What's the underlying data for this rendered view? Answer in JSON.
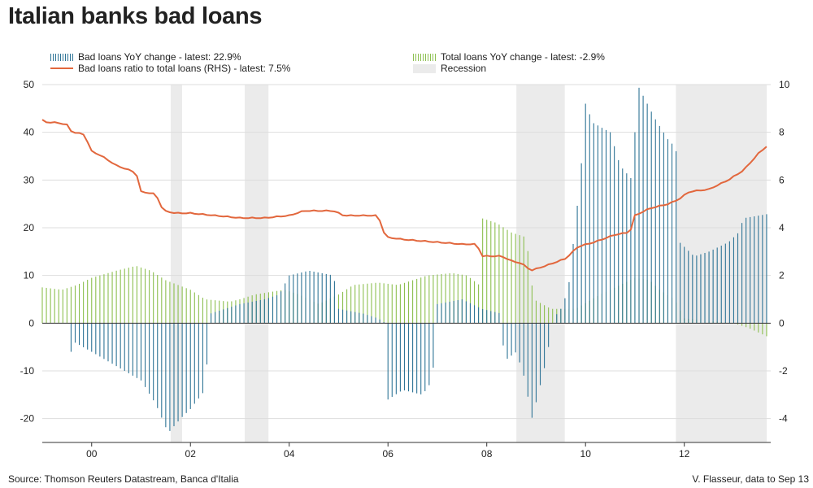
{
  "chart_data": {
    "type": "bar",
    "title": "Italian banks bad loans",
    "legend": [
      {
        "key": "bad_yoy",
        "label": "Bad loans YoY change - latest: 22.9%",
        "color": "#2e7496",
        "kind": "bars"
      },
      {
        "key": "ratio",
        "label": "Bad loans ratio to total loans (RHS) - latest: 7.5%",
        "color": "#e2673d",
        "kind": "line"
      },
      {
        "key": "total_yoy",
        "label": "Total loans YoY change - latest: -2.9%",
        "color": "#8cbf4f",
        "kind": "bars"
      },
      {
        "key": "recession",
        "label": "Recession",
        "color": "#ebebeb",
        "kind": "band"
      }
    ],
    "x_range": [
      1999.0,
      2013.75
    ],
    "x_ticks": [
      {
        "value": 2000,
        "label": "00"
      },
      {
        "value": 2002,
        "label": "02"
      },
      {
        "value": 2004,
        "label": "04"
      },
      {
        "value": 2006,
        "label": "06"
      },
      {
        "value": 2008,
        "label": "08"
      },
      {
        "value": 2010,
        "label": "10"
      },
      {
        "value": 2012,
        "label": "12"
      }
    ],
    "y_left": {
      "range": [
        -25,
        50
      ],
      "ticks": [
        50,
        40,
        30,
        20,
        10,
        0,
        -10,
        -20
      ]
    },
    "y_right": {
      "range": [
        -5,
        10
      ],
      "ticks": [
        10,
        8,
        6,
        4,
        2,
        0,
        -2,
        -4
      ]
    },
    "recessions": [
      [
        2001.6,
        2001.83
      ],
      [
        2003.1,
        2003.58
      ],
      [
        2008.6,
        2009.58
      ],
      [
        2011.83,
        2013.67
      ]
    ],
    "bad_loans_yoy": {
      "knots": [
        [
          1999.0,
          0
        ],
        [
          1999.5,
          0
        ],
        [
          1999.55,
          -7
        ],
        [
          1999.65,
          -4
        ],
        [
          2000.0,
          -6
        ],
        [
          2000.5,
          -9
        ],
        [
          2001.0,
          -12
        ],
        [
          2001.3,
          -17
        ],
        [
          2001.55,
          -23
        ],
        [
          2001.8,
          -20
        ],
        [
          2002.0,
          -18
        ],
        [
          2002.3,
          -14
        ],
        [
          2002.4,
          2
        ],
        [
          2002.7,
          3
        ],
        [
          2003.0,
          4
        ],
        [
          2003.5,
          5
        ],
        [
          2003.8,
          6
        ],
        [
          2004.0,
          10
        ],
        [
          2004.4,
          11
        ],
        [
          2004.9,
          10
        ],
        [
          2005.0,
          3
        ],
        [
          2005.5,
          2
        ],
        [
          2005.8,
          1
        ],
        [
          2005.95,
          0
        ],
        [
          2006.0,
          -16
        ],
        [
          2006.3,
          -14
        ],
        [
          2006.7,
          -15
        ],
        [
          2006.9,
          -12
        ],
        [
          2007.0,
          4
        ],
        [
          2007.5,
          5
        ],
        [
          2007.9,
          3
        ],
        [
          2008.3,
          2
        ],
        [
          2008.35,
          -8
        ],
        [
          2008.6,
          -6
        ],
        [
          2008.75,
          -11
        ],
        [
          2008.92,
          -20
        ],
        [
          2009.2,
          -8
        ],
        [
          2009.35,
          1
        ],
        [
          2009.5,
          3
        ],
        [
          2009.65,
          7
        ],
        [
          2009.9,
          31
        ],
        [
          2010.0,
          46
        ],
        [
          2010.15,
          42
        ],
        [
          2010.5,
          40
        ],
        [
          2010.7,
          33
        ],
        [
          2010.95,
          30
        ],
        [
          2011.05,
          50
        ],
        [
          2011.4,
          43
        ],
        [
          2011.7,
          38
        ],
        [
          2011.83,
          37
        ],
        [
          2011.9,
          17
        ],
        [
          2012.2,
          14
        ],
        [
          2012.5,
          15
        ],
        [
          2012.9,
          17
        ],
        [
          2013.1,
          19
        ],
        [
          2013.2,
          22
        ],
        [
          2013.7,
          22.9
        ]
      ],
      "step_months": 1,
      "latest": 22.9
    },
    "total_loans_yoy": {
      "knots": [
        [
          1999.0,
          7.5
        ],
        [
          1999.4,
          7
        ],
        [
          1999.7,
          8
        ],
        [
          2000.0,
          9.5
        ],
        [
          2000.5,
          11
        ],
        [
          2000.9,
          12
        ],
        [
          2001.2,
          11
        ],
        [
          2001.5,
          9
        ],
        [
          2002.0,
          7
        ],
        [
          2002.3,
          5
        ],
        [
          2002.8,
          4.5
        ],
        [
          2003.0,
          5
        ],
        [
          2003.3,
          6
        ],
        [
          2003.9,
          7
        ],
        [
          2004.2,
          6
        ],
        [
          2004.6,
          4
        ],
        [
          2005.0,
          6
        ],
        [
          2005.3,
          8
        ],
        [
          2005.8,
          8.5
        ],
        [
          2006.2,
          8
        ],
        [
          2006.8,
          10
        ],
        [
          2007.3,
          10.5
        ],
        [
          2007.6,
          10
        ],
        [
          2007.85,
          8
        ],
        [
          2007.9,
          22
        ],
        [
          2008.2,
          21
        ],
        [
          2008.5,
          19
        ],
        [
          2008.8,
          18
        ],
        [
          2008.95,
          5
        ],
        [
          2009.3,
          3
        ],
        [
          2009.8,
          3
        ],
        [
          2010.3,
          6
        ],
        [
          2010.7,
          8
        ],
        [
          2011.0,
          9.5
        ],
        [
          2011.3,
          9
        ],
        [
          2011.5,
          7
        ],
        [
          2011.8,
          5
        ],
        [
          2012.0,
          1
        ],
        [
          2012.5,
          0.5
        ],
        [
          2013.0,
          0
        ],
        [
          2013.3,
          -1
        ],
        [
          2013.7,
          -2.9
        ]
      ],
      "step_months": 1,
      "latest": -2.9
    },
    "bad_loans_ratio": {
      "axis": "right",
      "knots": [
        [
          1999.0,
          8.5
        ],
        [
          1999.1,
          8.4
        ],
        [
          1999.3,
          8.4
        ],
        [
          1999.5,
          8.3
        ],
        [
          1999.6,
          8.0
        ],
        [
          1999.85,
          7.9
        ],
        [
          2000.0,
          7.2
        ],
        [
          2000.2,
          7.0
        ],
        [
          2000.5,
          6.6
        ],
        [
          2000.9,
          6.3
        ],
        [
          2001.0,
          5.5
        ],
        [
          2001.3,
          5.4
        ],
        [
          2001.45,
          4.7
        ],
        [
          2001.7,
          4.6
        ],
        [
          2002.0,
          4.6
        ],
        [
          2002.5,
          4.5
        ],
        [
          2003.0,
          4.4
        ],
        [
          2003.5,
          4.4
        ],
        [
          2004.0,
          4.5
        ],
        [
          2004.3,
          4.7
        ],
        [
          2004.9,
          4.7
        ],
        [
          2005.1,
          4.5
        ],
        [
          2005.5,
          4.5
        ],
        [
          2005.8,
          4.5
        ],
        [
          2005.95,
          3.6
        ],
        [
          2006.3,
          3.5
        ],
        [
          2006.9,
          3.4
        ],
        [
          2007.5,
          3.3
        ],
        [
          2007.8,
          3.3
        ],
        [
          2007.9,
          2.8
        ],
        [
          2008.3,
          2.8
        ],
        [
          2008.5,
          2.6
        ],
        [
          2008.7,
          2.5
        ],
        [
          2008.9,
          2.2
        ],
        [
          2009.2,
          2.4
        ],
        [
          2009.6,
          2.7
        ],
        [
          2009.85,
          3.2
        ],
        [
          2010.2,
          3.4
        ],
        [
          2010.6,
          3.7
        ],
        [
          2010.9,
          3.8
        ],
        [
          2011.0,
          4.5
        ],
        [
          2011.3,
          4.8
        ],
        [
          2011.7,
          5.0
        ],
        [
          2011.9,
          5.2
        ],
        [
          2012.1,
          5.5
        ],
        [
          2012.5,
          5.6
        ],
        [
          2012.9,
          6.0
        ],
        [
          2013.2,
          6.4
        ],
        [
          2013.5,
          7.1
        ],
        [
          2013.72,
          7.5
        ]
      ],
      "latest": 7.5
    }
  },
  "footer": {
    "source": "Source: Thomson Reuters Datastream, Banca d'Italia",
    "credit": "V. Flasseur, data to Sep 13"
  }
}
